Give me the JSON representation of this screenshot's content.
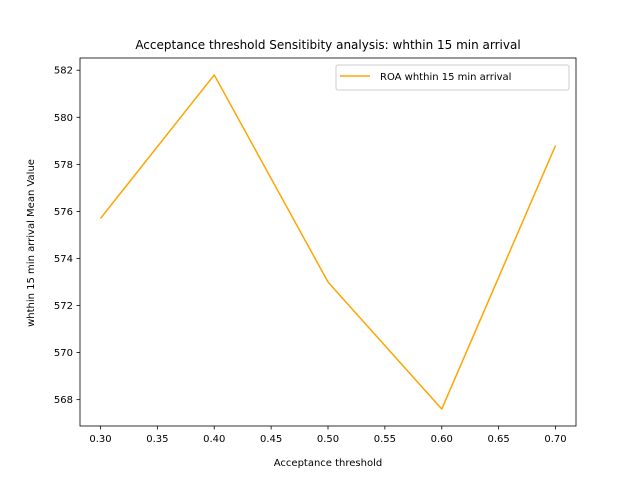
{
  "chart_data": {
    "type": "line",
    "title": "Acceptance threshold Sensitibity analysis: whthin 15 min arrival",
    "xlabel": "Acceptance threshold",
    "ylabel": "whthin 15 min arrival Mean Value",
    "x": [
      0.3,
      0.4,
      0.5,
      0.6,
      0.7
    ],
    "series": [
      {
        "name": "ROA whthin 15 min arrival",
        "color": "#FFA500",
        "values": [
          575.7,
          581.8,
          573.0,
          567.6,
          578.8
        ]
      }
    ],
    "xlim": [
      0.282,
      0.718
    ],
    "ylim": [
      566.88,
      582.52
    ],
    "xticks": [
      "0.30",
      "0.35",
      "0.40",
      "0.45",
      "0.50",
      "0.55",
      "0.60",
      "0.65",
      "0.70"
    ],
    "yticks": [
      "568",
      "570",
      "572",
      "574",
      "576",
      "578",
      "580",
      "582"
    ],
    "grid": false,
    "legend": "top-right"
  }
}
